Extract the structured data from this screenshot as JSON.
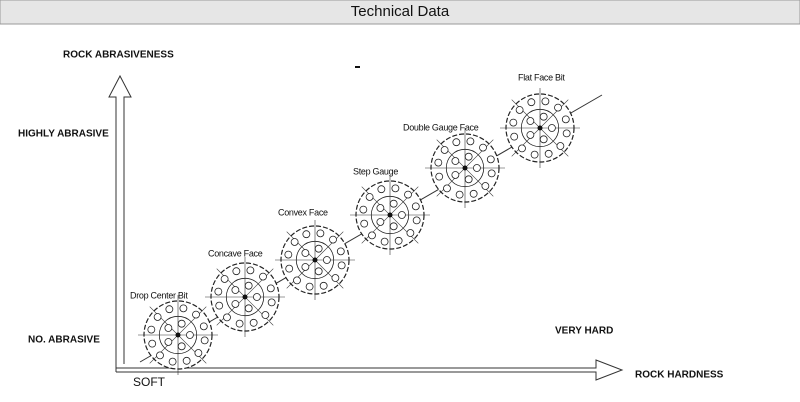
{
  "header": {
    "title": "Technical Data"
  },
  "axes": {
    "y_label": "ROCK ABRASIVENESS",
    "y_high": "HIGHLY ABRASIVE",
    "y_low": "NO. ABRASIVE",
    "x_low": "SOFT",
    "x_high": "VERY HARD",
    "x_label": "ROCK HARDNESS"
  },
  "bits": [
    {
      "label": "Drop Center Bit"
    },
    {
      "label": "Concave Face"
    },
    {
      "label": "Convex Face"
    },
    {
      "label": "Step Gauge"
    },
    {
      "label": "Double Gauge Face"
    },
    {
      "label": "Flat Face Bit"
    }
  ]
}
